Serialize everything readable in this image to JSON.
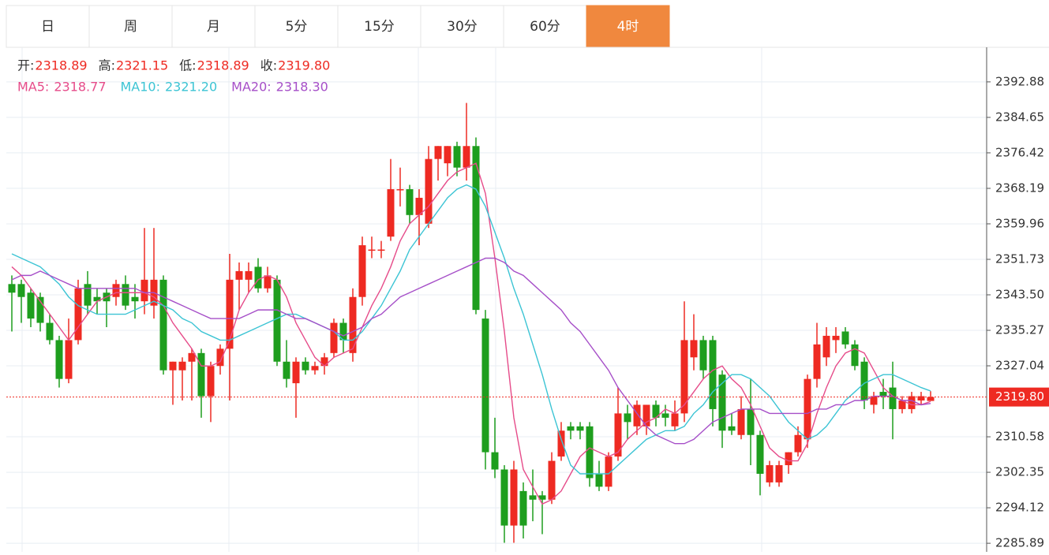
{
  "tabs": {
    "items": [
      "日",
      "周",
      "月",
      "5分",
      "15分",
      "30分",
      "60分",
      "4时"
    ],
    "active": 7
  },
  "header": {
    "ohlc": [
      {
        "label": "开:",
        "value": "2318.89"
      },
      {
        "label": "高:",
        "value": "2321.15"
      },
      {
        "label": "低:",
        "value": "2318.89"
      },
      {
        "label": "收:",
        "value": "2319.80"
      }
    ],
    "ma": [
      {
        "label": "MA5:",
        "value": "2318.77"
      },
      {
        "label": "MA10:",
        "value": "2321.20"
      },
      {
        "label": "MA20:",
        "value": "2318.30"
      }
    ]
  },
  "chart_data": {
    "type": "candlestick",
    "up_color": "#ee2a22",
    "down_color": "#1e9e1e",
    "open": [
      2346,
      2346,
      2344,
      2343,
      2337,
      2333,
      2324,
      2333,
      2346,
      2343,
      2344,
      2343,
      2346,
      2343,
      2342,
      2341,
      2347,
      2326,
      2326,
      2328,
      2330,
      2320,
      2327,
      2331,
      2347,
      2347,
      2350,
      2345,
      2347,
      2328,
      2323,
      2328,
      2326,
      2327,
      2330,
      2337,
      2330,
      2343,
      2354,
      2354,
      2357,
      2368,
      2368,
      2362,
      2360,
      2375,
      2374,
      2378,
      2373,
      2378,
      2338,
      2307,
      2303,
      2290,
      2298,
      2297,
      2297,
      2296,
      2306,
      2313,
      2313,
      2313,
      2302,
      2299,
      2306,
      2316,
      2313,
      2313,
      2318,
      2316,
      2313,
      2316,
      2329,
      2333,
      2333,
      2325,
      2313,
      2311,
      2317,
      2311,
      2300,
      2300,
      2304,
      2307,
      2310,
      2324,
      2329,
      2333,
      2335,
      2332,
      2328,
      2318,
      2321,
      2322,
      2317,
      2317,
      2319,
      2318.89
    ],
    "high": [
      2348,
      2347,
      2345,
      2344,
      2339,
      2334,
      2338,
      2347,
      2349,
      2345,
      2345,
      2347,
      2348,
      2346,
      2359,
      2359,
      2348,
      2328,
      2329,
      2331,
      2331,
      2328,
      2332,
      2353,
      2351,
      2351,
      2352,
      2350,
      2348,
      2333,
      2329,
      2329,
      2328,
      2330,
      2338,
      2338,
      2345,
      2357,
      2357,
      2356,
      2375,
      2373,
      2369,
      2368,
      2378,
      2378,
      2378,
      2379,
      2388,
      2380,
      2340,
      2315,
      2304,
      2305,
      2300,
      2303,
      2298,
      2307,
      2314,
      2314,
      2314,
      2314,
      2305,
      2307,
      2322,
      2318,
      2319,
      2318,
      2319,
      2318,
      2319,
      2342,
      2339,
      2334,
      2334,
      2326,
      2316,
      2320,
      2324,
      2312,
      2305,
      2305,
      2307,
      2313,
      2325,
      2337,
      2336,
      2336,
      2336,
      2333,
      2329,
      2321,
      2324,
      2328,
      2320,
      2321,
      2321,
      2321.15
    ],
    "low": [
      2335,
      2337,
      2336,
      2335,
      2332,
      2322,
      2323,
      2332,
      2339,
      2339,
      2336,
      2341,
      2340,
      2338,
      2339,
      2338,
      2325,
      2318,
      2319,
      2319,
      2315,
      2314,
      2325,
      2319,
      2340,
      2344,
      2344,
      2344,
      2327,
      2322,
      2315,
      2325,
      2325,
      2325,
      2329,
      2330,
      2328,
      2341,
      2352,
      2352,
      2356,
      2364,
      2360,
      2355,
      2359,
      2370,
      2371,
      2371,
      2370,
      2339,
      2303,
      2301,
      2286,
      2286,
      2287,
      2291,
      2288,
      2295,
      2305,
      2310,
      2310,
      2299,
      2298,
      2298,
      2305,
      2310,
      2311,
      2311,
      2313,
      2313,
      2312,
      2314,
      2326,
      2324,
      2313,
      2308,
      2311,
      2310,
      2304,
      2297,
      2299,
      2299,
      2302,
      2306,
      2308,
      2322,
      2327,
      2330,
      2331,
      2326,
      2317,
      2316,
      2317,
      2310,
      2316,
      2316,
      2318,
      2318.89
    ],
    "close": [
      2344,
      2343,
      2338,
      2337,
      2333,
      2324,
      2333,
      2345,
      2341,
      2342,
      2342,
      2346,
      2341,
      2342,
      2347,
      2347,
      2326,
      2328,
      2328,
      2330,
      2320,
      2327,
      2331,
      2347,
      2349,
      2349,
      2345,
      2348,
      2328,
      2324,
      2328,
      2326,
      2327,
      2329,
      2337,
      2333,
      2343,
      2355,
      2354,
      2354,
      2368,
      2368,
      2362,
      2366,
      2375,
      2378,
      2378,
      2373,
      2378,
      2340,
      2307,
      2303,
      2290,
      2303,
      2290,
      2296,
      2296,
      2305,
      2312,
      2312,
      2312,
      2301,
      2299,
      2306,
      2316,
      2314,
      2318,
      2318,
      2315,
      2315,
      2316,
      2333,
      2333,
      2326,
      2317,
      2312,
      2312,
      2317,
      2311,
      2302,
      2304,
      2304,
      2307,
      2311,
      2324,
      2332,
      2334,
      2334,
      2332,
      2327,
      2319,
      2320,
      2320,
      2317,
      2319,
      2320,
      2320,
      2319.8
    ],
    "series": [
      {
        "name": "MA5",
        "color": "#e64c8a",
        "values": [
          2350,
          2348,
          2345,
          2342,
          2339,
          2336,
          2333,
          2336,
          2339,
          2342,
          2343,
          2344,
          2344,
          2344,
          2344,
          2343,
          2341,
          2337,
          2334,
          2331,
          2327,
          2327,
          2328,
          2333,
          2340,
          2344,
          2347,
          2348,
          2347,
          2343,
          2337,
          2333,
          2329,
          2327,
          2329,
          2330,
          2331,
          2336,
          2341,
          2345,
          2350,
          2356,
          2360,
          2362,
          2364,
          2367,
          2370,
          2372,
          2373,
          2374,
          2367,
          2352,
          2335,
          2315,
          2303,
          2299,
          2295,
          2296,
          2298,
          2302,
          2306,
          2308,
          2307,
          2306,
          2307,
          2310,
          2312,
          2314,
          2315,
          2317,
          2316,
          2318,
          2321,
          2324,
          2326,
          2327,
          2324,
          2322,
          2318,
          2313,
          2308,
          2306,
          2305,
          2305,
          2309,
          2316,
          2322,
          2327,
          2330,
          2331,
          2330,
          2326,
          2322,
          2320,
          2319,
          2318,
          2318,
          2318.77
        ]
      },
      {
        "name": "MA10",
        "color": "#3cc4d4",
        "values": [
          2353,
          2352,
          2351,
          2350,
          2348,
          2346,
          2343,
          2341,
          2340,
          2339,
          2339,
          2339,
          2339,
          2340,
          2341,
          2342,
          2341,
          2340,
          2338,
          2337,
          2335,
          2334,
          2333,
          2333,
          2334,
          2335,
          2336,
          2337,
          2338,
          2339,
          2339,
          2338,
          2337,
          2336,
          2335,
          2333,
          2333,
          2335,
          2338,
          2341,
          2345,
          2349,
          2354,
          2357,
          2360,
          2363,
          2366,
          2368,
          2369,
          2368,
          2364,
          2358,
          2352,
          2345,
          2339,
          2332,
          2325,
          2317,
          2310,
          2304,
          2302,
          2302,
          2302,
          2302,
          2304,
          2306,
          2308,
          2310,
          2311,
          2312,
          2312,
          2313,
          2316,
          2318,
          2321,
          2323,
          2325,
          2325,
          2324,
          2322,
          2320,
          2317,
          2314,
          2312,
          2310,
          2311,
          2313,
          2316,
          2319,
          2321,
          2323,
          2324,
          2325,
          2325,
          2324,
          2323,
          2322,
          2321.2
        ]
      },
      {
        "name": "MA20",
        "color": "#a64fc8",
        "values": [
          2347,
          2348,
          2348,
          2349,
          2348,
          2347,
          2346,
          2345,
          2345,
          2345,
          2345,
          2345,
          2345,
          2345,
          2344,
          2344,
          2343,
          2342,
          2341,
          2340,
          2339,
          2338,
          2338,
          2338,
          2338,
          2339,
          2340,
          2340,
          2340,
          2339,
          2338,
          2338,
          2337,
          2336,
          2335,
          2334,
          2335,
          2336,
          2338,
          2339,
          2341,
          2343,
          2344,
          2345,
          2346,
          2347,
          2348,
          2349,
          2350,
          2351,
          2352,
          2352,
          2351,
          2349,
          2348,
          2346,
          2344,
          2342,
          2340,
          2337,
          2335,
          2332,
          2329,
          2326,
          2322,
          2319,
          2316,
          2313,
          2311,
          2310,
          2309,
          2309,
          2310,
          2312,
          2314,
          2315,
          2316,
          2317,
          2317,
          2317,
          2316,
          2316,
          2316,
          2316,
          2316,
          2317,
          2317,
          2318,
          2318,
          2319,
          2319,
          2320,
          2320,
          2320,
          2319,
          2319,
          2318,
          2318.3
        ]
      }
    ],
    "last_price": {
      "value": 2319.8,
      "label": "2319.80"
    },
    "ylim": [
      2283.9,
      2400.9
    ],
    "yticks": [
      2285.89,
      2294.12,
      2302.35,
      2310.58,
      2327.04,
      2335.27,
      {
        "value": 2343.5,
        "label": "2343.50"
      },
      2351.73,
      2359.96,
      2368.19,
      2376.42,
      2384.65,
      2392.88
    ],
    "grid": true
  }
}
